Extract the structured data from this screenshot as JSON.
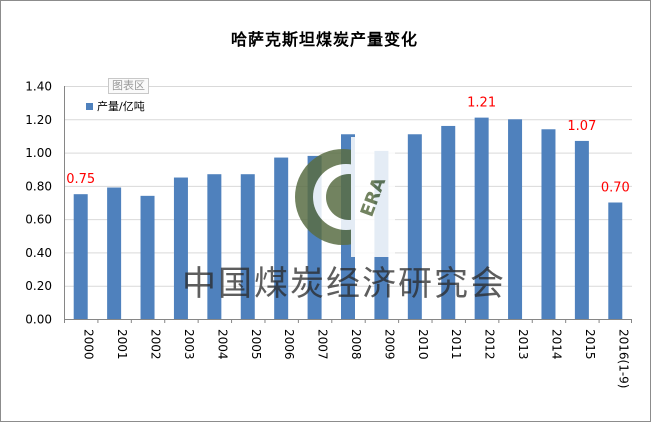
{
  "chart_data": {
    "type": "bar",
    "title": "哈萨克斯坦煤炭产量变化",
    "categories": [
      "2000",
      "2001",
      "2002",
      "2003",
      "2004",
      "2005",
      "2006",
      "2007",
      "2008",
      "2009",
      "2010",
      "2011",
      "2012",
      "2013",
      "2014",
      "2015",
      "2016(1-9)"
    ],
    "series": [
      {
        "name": "产量/亿吨",
        "color": "#4f81bd",
        "values": [
          0.75,
          0.79,
          0.74,
          0.85,
          0.87,
          0.87,
          0.97,
          0.98,
          1.11,
          1.01,
          1.11,
          1.16,
          1.21,
          1.2,
          1.14,
          1.07,
          0.7
        ]
      }
    ],
    "data_labels": [
      {
        "category": "2000",
        "text": "0.75"
      },
      {
        "category": "2012",
        "text": "1.21"
      },
      {
        "category": "2015",
        "text": "1.07"
      },
      {
        "category": "2016(1-9)",
        "text": "0.70"
      }
    ],
    "data_label_color": "#ff0000",
    "yticks": [
      "0.00",
      "0.20",
      "0.40",
      "0.60",
      "0.80",
      "1.00",
      "1.20",
      "1.40"
    ],
    "ylim": [
      0,
      1.4
    ],
    "grid": true,
    "legend_position": "top-left"
  },
  "plot_tag": "图表区",
  "watermark": {
    "logo_text": "ERA",
    "org_name": "中国煤炭经济研究会"
  }
}
